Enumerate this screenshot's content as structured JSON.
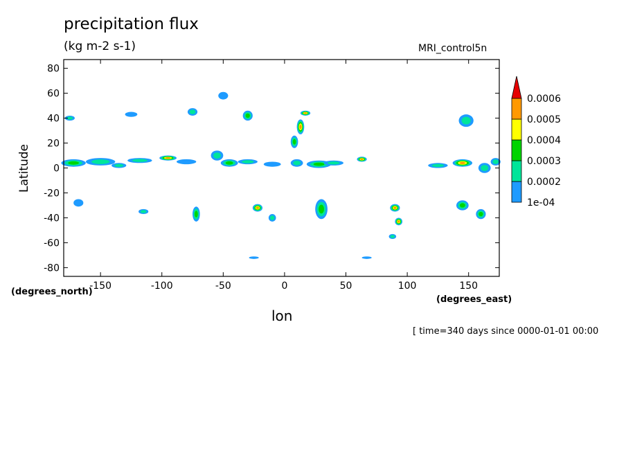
{
  "chart_data": {
    "type": "heatmap",
    "title": "precipitation flux",
    "units": "(kg m-2 s-1)",
    "dataset": "MRI_control5n",
    "xlabel": "lon",
    "ylabel": "Latitude",
    "xunit": "(degrees_east)",
    "yunit": "(degrees_north)",
    "time_info": "[ time=340 days since 0000-01-01 00:00",
    "xlim": [
      -180,
      175
    ],
    "ylim": [
      -87,
      87
    ],
    "xticks": [
      -150,
      -100,
      -50,
      0,
      50,
      100,
      150
    ],
    "yticks": [
      80,
      60,
      40,
      20,
      0,
      -20,
      -40,
      -60,
      -80
    ],
    "xtick_labels": [
      "-150",
      "-100",
      "-50",
      "0",
      "50",
      "100",
      "150"
    ],
    "ytick_labels": [
      "80",
      "60",
      "40",
      "20",
      "0",
      "-20",
      "-40",
      "-60",
      "-80"
    ],
    "colorbar": {
      "levels": [
        "1e-04",
        "0.0002",
        "0.0003",
        "0.0004",
        "0.0005",
        "0.0006"
      ],
      "colors": [
        "#1e9bff",
        "#00e59a",
        "#00d400",
        "#ffff00",
        "#ff9900",
        "#e60000"
      ]
    },
    "features": [
      {
        "lon": -172,
        "lat": 4,
        "dlon": 10,
        "dlat": 3,
        "level": 3
      },
      {
        "lon": -150,
        "lat": 5,
        "dlon": 12,
        "dlat": 3,
        "level": 2
      },
      {
        "lon": -135,
        "lat": 2,
        "dlon": 6,
        "dlat": 2,
        "level": 2
      },
      {
        "lon": -118,
        "lat": 6,
        "dlon": 10,
        "dlat": 2,
        "level": 2
      },
      {
        "lon": -95,
        "lat": 8,
        "dlon": 7,
        "dlat": 2,
        "level": 5
      },
      {
        "lon": -80,
        "lat": 5,
        "dlon": 8,
        "dlat": 2,
        "level": 1
      },
      {
        "lon": -55,
        "lat": 10,
        "dlon": 5,
        "dlat": 4,
        "level": 2
      },
      {
        "lon": -45,
        "lat": 4,
        "dlon": 7,
        "dlat": 3,
        "level": 3
      },
      {
        "lon": -30,
        "lat": 5,
        "dlon": 8,
        "dlat": 2,
        "level": 2
      },
      {
        "lon": -10,
        "lat": 3,
        "dlon": 7,
        "dlat": 2,
        "level": 1
      },
      {
        "lon": 10,
        "lat": 4,
        "dlon": 5,
        "dlat": 3,
        "level": 2
      },
      {
        "lon": 28,
        "lat": 3,
        "dlon": 10,
        "dlat": 3,
        "level": 3
      },
      {
        "lon": 40,
        "lat": 4,
        "dlon": 8,
        "dlat": 2,
        "level": 2
      },
      {
        "lon": 63,
        "lat": 7,
        "dlon": 4,
        "dlat": 2,
        "level": 5
      },
      {
        "lon": 125,
        "lat": 2,
        "dlon": 8,
        "dlat": 2,
        "level": 2
      },
      {
        "lon": 145,
        "lat": 4,
        "dlon": 8,
        "dlat": 3,
        "level": 5
      },
      {
        "lon": 163,
        "lat": 0,
        "dlon": 5,
        "dlat": 4,
        "level": 2
      },
      {
        "lon": 172,
        "lat": 5,
        "dlon": 4,
        "dlat": 3,
        "level": 2
      },
      {
        "lon": 17,
        "lat": 44,
        "dlon": 4,
        "dlat": 2,
        "level": 5
      },
      {
        "lon": 13,
        "lat": 33,
        "dlon": 3,
        "dlat": 6,
        "level": 5
      },
      {
        "lon": 8,
        "lat": 21,
        "dlon": 3,
        "dlat": 5,
        "level": 3
      },
      {
        "lon": -30,
        "lat": 42,
        "dlon": 4,
        "dlat": 4,
        "level": 3
      },
      {
        "lon": -75,
        "lat": 45,
        "dlon": 4,
        "dlat": 3,
        "level": 2
      },
      {
        "lon": -125,
        "lat": 43,
        "dlon": 5,
        "dlat": 2,
        "level": 1
      },
      {
        "lon": -175,
        "lat": 40,
        "dlon": 4,
        "dlat": 2,
        "level": 2
      },
      {
        "lon": 148,
        "lat": 38,
        "dlon": 6,
        "dlat": 5,
        "level": 2
      },
      {
        "lon": -50,
        "lat": 58,
        "dlon": 4,
        "dlat": 3,
        "level": 1
      },
      {
        "lon": -72,
        "lat": -37,
        "dlon": 3,
        "dlat": 6,
        "level": 3
      },
      {
        "lon": -22,
        "lat": -32,
        "dlon": 4,
        "dlat": 3,
        "level": 5
      },
      {
        "lon": -10,
        "lat": -40,
        "dlon": 3,
        "dlat": 3,
        "level": 2
      },
      {
        "lon": 30,
        "lat": -33,
        "dlon": 5,
        "dlat": 8,
        "level": 3
      },
      {
        "lon": 90,
        "lat": -32,
        "dlon": 4,
        "dlat": 3,
        "level": 5
      },
      {
        "lon": 93,
        "lat": -43,
        "dlon": 3,
        "dlat": 3,
        "level": 5
      },
      {
        "lon": 145,
        "lat": -30,
        "dlon": 5,
        "dlat": 4,
        "level": 3
      },
      {
        "lon": 160,
        "lat": -37,
        "dlon": 4,
        "dlat": 4,
        "level": 3
      },
      {
        "lon": -168,
        "lat": -28,
        "dlon": 4,
        "dlat": 3,
        "level": 1
      },
      {
        "lon": -115,
        "lat": -35,
        "dlon": 4,
        "dlat": 2,
        "level": 2
      },
      {
        "lon": 88,
        "lat": -55,
        "dlon": 3,
        "dlat": 2,
        "level": 2
      },
      {
        "lon": -25,
        "lat": -72,
        "dlon": 4,
        "dlat": 1,
        "level": 1
      },
      {
        "lon": 67,
        "lat": -72,
        "dlon": 4,
        "dlat": 1,
        "level": 1
      }
    ]
  }
}
